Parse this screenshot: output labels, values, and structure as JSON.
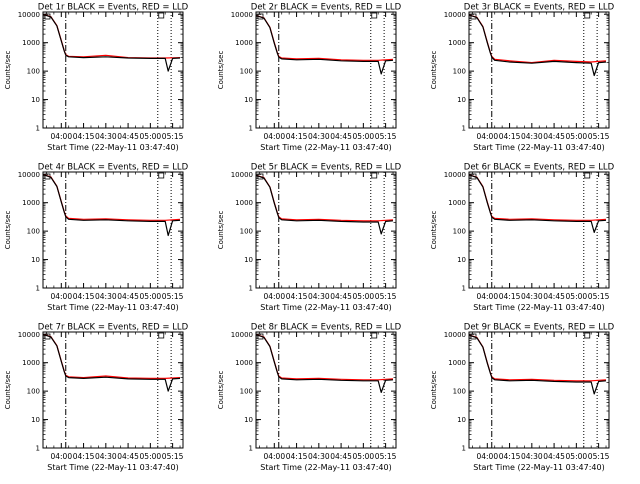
{
  "charts": [
    {
      "title": "Det 1r BLACK = Events, RED = LLD",
      "ylabel": "Counts/sec",
      "xlabel": "Start Time (22-May-11 03:47:40)"
    },
    {
      "title": "Det 2r BLACK = Events, RED = LLD",
      "ylabel": "Counts/sec",
      "xlabel": "Start Time (22-May-11 03:47:40)"
    },
    {
      "title": "Det 3r BLACK = Events, RED = LLD",
      "ylabel": "Counts/sec",
      "xlabel": "Start Time (22-May-11 03:47:40)"
    },
    {
      "title": "Det 4r BLACK = Events, RED = LLD",
      "ylabel": "Counts/sec",
      "xlabel": "Start Time (22-May-11 03:47:40)"
    },
    {
      "title": "Det 5r BLACK = Events, RED = LLD",
      "ylabel": "Counts/sec",
      "xlabel": "Start Time (22-May-11 03:47:40)"
    },
    {
      "title": "Det 6r BLACK = Events, RED = LLD",
      "ylabel": "Counts/sec",
      "xlabel": "Start Time (22-May-11 03:47:40)"
    },
    {
      "title": "Det 7r BLACK = Events, RED = LLD",
      "ylabel": "Counts/sec",
      "xlabel": "Start Time (22-May-11 03:47:40)"
    },
    {
      "title": "Det 8r BLACK = Events, RED = LLD",
      "ylabel": "Counts/sec",
      "xlabel": "Start Time (22-May-11 03:47:40)"
    },
    {
      "title": "Det 9r BLACK = Events, RED = LLD",
      "ylabel": "Counts/sec",
      "xlabel": "Start Time (22-May-11 03:47:40)"
    }
  ],
  "colors": {
    "events": "#000000",
    "lld": "#ff0000"
  },
  "chart_data": [
    {
      "type": "line",
      "title": "Det 1r BLACK = Events, RED = LLD",
      "xlabel": "Start Time (22-May-11 03:47:40)",
      "ylabel": "Counts/sec",
      "xlim": [
        "03:47:40",
        "05:22"
      ],
      "ylim": [
        1,
        12000
      ],
      "yscale": "log",
      "xticks": [
        "04:00",
        "04:15",
        "04:30",
        "04:45",
        "05:00",
        "05:15"
      ],
      "yticks": [
        "1",
        "10",
        "100",
        "1000",
        "10000"
      ],
      "marker_dashdot": "04:03",
      "marker_dotted": [
        "05:05",
        "05:14"
      ],
      "series": [
        {
          "color": "red",
          "x": [
            "03:47:40",
            "03:53",
            "03:57",
            "04:00",
            "04:02",
            "04:03",
            "04:05",
            "04:15",
            "04:30",
            "04:45",
            "05:00",
            "05:10",
            "05:15",
            "05:20"
          ],
          "values": [
            10000,
            8200,
            4000,
            1200,
            520,
            380,
            330,
            320,
            360,
            300,
            290,
            290,
            295,
            300
          ]
        },
        {
          "color": "black",
          "x": [
            "03:47:40",
            "03:53",
            "03:57",
            "04:00",
            "04:02",
            "04:03",
            "04:05",
            "04:15",
            "04:30",
            "04:45",
            "05:00",
            "05:10",
            "05:12",
            "05:15",
            "05:20"
          ],
          "values": [
            10000,
            8000,
            3900,
            1150,
            500,
            360,
            320,
            300,
            320,
            290,
            280,
            280,
            100,
            280,
            290
          ]
        }
      ]
    },
    {
      "type": "line",
      "title": "Det 2r BLACK = Events, RED = LLD",
      "xlabel": "Start Time (22-May-11 03:47:40)",
      "ylabel": "Counts/sec",
      "xlim": [
        "03:47:40",
        "05:22"
      ],
      "ylim": [
        1,
        12000
      ],
      "yscale": "log",
      "xticks": [
        "04:00",
        "04:15",
        "04:30",
        "04:45",
        "05:00",
        "05:15"
      ],
      "yticks": [
        "1",
        "10",
        "100",
        "1000",
        "10000"
      ],
      "marker_dashdot": "04:03",
      "marker_dotted": [
        "05:05",
        "05:14"
      ],
      "series": [
        {
          "color": "red",
          "x": [
            "03:47:40",
            "03:53",
            "03:57",
            "04:00",
            "04:02",
            "04:03",
            "04:05",
            "04:15",
            "04:30",
            "04:45",
            "05:00",
            "05:10",
            "05:15",
            "05:20"
          ],
          "values": [
            9000,
            7500,
            3500,
            1000,
            450,
            330,
            290,
            270,
            280,
            250,
            240,
            240,
            250,
            260
          ]
        },
        {
          "color": "black",
          "x": [
            "03:47:40",
            "03:53",
            "03:57",
            "04:00",
            "04:02",
            "04:03",
            "04:05",
            "04:15",
            "04:30",
            "04:45",
            "05:00",
            "05:10",
            "05:12",
            "05:15",
            "05:20"
          ],
          "values": [
            9000,
            7300,
            3400,
            950,
            430,
            310,
            270,
            250,
            260,
            230,
            220,
            220,
            80,
            230,
            240
          ]
        }
      ]
    },
    {
      "type": "line",
      "title": "Det 3r BLACK = Events, RED = LLD",
      "xlabel": "Start Time (22-May-11 03:47:40)",
      "ylabel": "Counts/sec",
      "xlim": [
        "03:47:40",
        "05:22"
      ],
      "ylim": [
        1,
        12000
      ],
      "yscale": "log",
      "xticks": [
        "04:00",
        "04:15",
        "04:30",
        "04:45",
        "05:00",
        "05:15"
      ],
      "yticks": [
        "1",
        "10",
        "100",
        "1000",
        "10000"
      ],
      "marker_dashdot": "04:03",
      "marker_dotted": [
        "05:05",
        "05:14"
      ],
      "series": [
        {
          "color": "red",
          "x": [
            "03:47:40",
            "03:53",
            "03:57",
            "04:00",
            "04:02",
            "04:03",
            "04:05",
            "04:15",
            "04:30",
            "04:45",
            "05:00",
            "05:10",
            "05:15",
            "05:20"
          ],
          "values": [
            9500,
            7800,
            3700,
            1050,
            460,
            330,
            260,
            230,
            200,
            240,
            220,
            210,
            220,
            230
          ]
        },
        {
          "color": "black",
          "x": [
            "03:47:40",
            "03:53",
            "03:57",
            "04:00",
            "04:02",
            "04:03",
            "04:05",
            "04:15",
            "04:30",
            "04:45",
            "05:00",
            "05:10",
            "05:12",
            "05:15",
            "05:20"
          ],
          "values": [
            9500,
            7600,
            3600,
            1000,
            440,
            310,
            240,
            210,
            190,
            220,
            200,
            190,
            70,
            200,
            210
          ]
        }
      ]
    },
    {
      "type": "line",
      "title": "Det 4r BLACK = Events, RED = LLD",
      "xlabel": "Start Time (22-May-11 03:47:40)",
      "ylabel": "Counts/sec",
      "xlim": [
        "03:47:40",
        "05:22"
      ],
      "ylim": [
        1,
        12000
      ],
      "yscale": "log",
      "xticks": [
        "04:00",
        "04:15",
        "04:30",
        "04:45",
        "05:00",
        "05:15"
      ],
      "yticks": [
        "1",
        "10",
        "100",
        "1000",
        "10000"
      ],
      "marker_dashdot": "04:03",
      "marker_dotted": [
        "05:05",
        "05:14"
      ],
      "series": [
        {
          "color": "red",
          "x": [
            "03:47:40",
            "03:53",
            "03:57",
            "04:00",
            "04:02",
            "04:03",
            "04:05",
            "04:15",
            "04:30",
            "04:45",
            "05:00",
            "05:10",
            "05:15",
            "05:20"
          ],
          "values": [
            9800,
            8000,
            3800,
            1100,
            480,
            340,
            280,
            260,
            270,
            250,
            240,
            240,
            250,
            260
          ]
        },
        {
          "color": "black",
          "x": [
            "03:47:40",
            "03:53",
            "03:57",
            "04:00",
            "04:02",
            "04:03",
            "04:05",
            "04:15",
            "04:30",
            "04:45",
            "05:00",
            "05:10",
            "05:12",
            "05:15",
            "05:20"
          ],
          "values": [
            9800,
            7800,
            3700,
            1050,
            460,
            320,
            260,
            240,
            250,
            230,
            220,
            220,
            70,
            230,
            240
          ]
        }
      ]
    },
    {
      "type": "line",
      "title": "Det 5r BLACK = Events, RED = LLD",
      "xlabel": "Start Time (22-May-11 03:47:40)",
      "ylabel": "Counts/sec",
      "xlim": [
        "03:47:40",
        "05:22"
      ],
      "ylim": [
        1,
        12000
      ],
      "yscale": "log",
      "xticks": [
        "04:00",
        "04:15",
        "04:30",
        "04:45",
        "05:00",
        "05:15"
      ],
      "yticks": [
        "1",
        "10",
        "100",
        "1000",
        "10000"
      ],
      "marker_dashdot": "04:03",
      "marker_dotted": [
        "05:05",
        "05:14"
      ],
      "series": [
        {
          "color": "red",
          "x": [
            "03:47:40",
            "03:53",
            "03:57",
            "04:00",
            "04:02",
            "04:03",
            "04:05",
            "04:15",
            "04:30",
            "04:45",
            "05:00",
            "05:10",
            "05:15",
            "05:20"
          ],
          "values": [
            9200,
            7600,
            3600,
            1000,
            450,
            320,
            270,
            250,
            260,
            240,
            230,
            230,
            240,
            250
          ]
        },
        {
          "color": "black",
          "x": [
            "03:47:40",
            "03:53",
            "03:57",
            "04:00",
            "04:02",
            "04:03",
            "04:05",
            "04:15",
            "04:30",
            "04:45",
            "05:00",
            "05:10",
            "05:12",
            "05:15",
            "05:20"
          ],
          "values": [
            9200,
            7400,
            3500,
            960,
            430,
            300,
            250,
            230,
            240,
            220,
            210,
            210,
            80,
            220,
            230
          ]
        }
      ]
    },
    {
      "type": "line",
      "title": "Det 6r BLACK = Events, RED = LLD",
      "xlabel": "Start Time (22-May-11 03:47:40)",
      "ylabel": "Counts/sec",
      "xlim": [
        "03:47:40",
        "05:22"
      ],
      "ylim": [
        1,
        12000
      ],
      "yscale": "log",
      "xticks": [
        "04:00",
        "04:15",
        "04:30",
        "04:45",
        "05:00",
        "05:15"
      ],
      "yticks": [
        "1",
        "10",
        "100",
        "1000",
        "10000"
      ],
      "marker_dashdot": "04:03",
      "marker_dotted": [
        "05:05",
        "05:14"
      ],
      "series": [
        {
          "color": "red",
          "x": [
            "03:47:40",
            "03:53",
            "03:57",
            "04:00",
            "04:02",
            "04:03",
            "04:05",
            "04:15",
            "04:30",
            "04:45",
            "05:00",
            "05:10",
            "05:15",
            "05:20"
          ],
          "values": [
            9600,
            7900,
            3700,
            1050,
            470,
            330,
            280,
            260,
            270,
            250,
            240,
            240,
            250,
            260
          ]
        },
        {
          "color": "black",
          "x": [
            "03:47:40",
            "03:53",
            "03:57",
            "04:00",
            "04:02",
            "04:03",
            "04:05",
            "04:15",
            "04:30",
            "04:45",
            "05:00",
            "05:10",
            "05:12",
            "05:15",
            "05:20"
          ],
          "values": [
            9600,
            7700,
            3600,
            1000,
            450,
            310,
            260,
            240,
            250,
            230,
            220,
            220,
            90,
            230,
            240
          ]
        }
      ]
    },
    {
      "type": "line",
      "title": "Det 7r BLACK = Events, RED = LLD",
      "xlabel": "Start Time (22-May-11 03:47:40)",
      "ylabel": "Counts/sec",
      "xlim": [
        "03:47:40",
        "05:22"
      ],
      "ylim": [
        1,
        12000
      ],
      "yscale": "log",
      "xticks": [
        "04:00",
        "04:15",
        "04:30",
        "04:45",
        "05:00",
        "05:15"
      ],
      "yticks": [
        "1",
        "10",
        "100",
        "1000",
        "10000"
      ],
      "marker_dashdot": "04:03",
      "marker_dotted": [
        "05:05",
        "05:14"
      ],
      "series": [
        {
          "color": "red",
          "x": [
            "03:47:40",
            "03:53",
            "03:57",
            "04:00",
            "04:02",
            "04:03",
            "04:05",
            "04:15",
            "04:30",
            "04:45",
            "05:00",
            "05:10",
            "05:15",
            "05:20"
          ],
          "values": [
            10000,
            8200,
            4000,
            1150,
            500,
            360,
            320,
            300,
            340,
            290,
            280,
            280,
            290,
            300
          ]
        },
        {
          "color": "black",
          "x": [
            "03:47:40",
            "03:53",
            "03:57",
            "04:00",
            "04:02",
            "04:03",
            "04:05",
            "04:15",
            "04:30",
            "04:45",
            "05:00",
            "05:10",
            "05:12",
            "05:15",
            "05:20"
          ],
          "values": [
            10000,
            8000,
            3900,
            1100,
            480,
            340,
            300,
            280,
            310,
            270,
            260,
            260,
            100,
            270,
            280
          ]
        }
      ]
    },
    {
      "type": "line",
      "title": "Det 8r BLACK = Events, RED = LLD",
      "xlabel": "Start Time (22-May-11 03:47:40)",
      "ylabel": "Counts/sec",
      "xlim": [
        "03:47:40",
        "05:22"
      ],
      "ylim": [
        1,
        12000
      ],
      "yscale": "log",
      "xticks": [
        "04:00",
        "04:15",
        "04:30",
        "04:45",
        "05:00",
        "05:15"
      ],
      "yticks": [
        "1",
        "10",
        "100",
        "1000",
        "10000"
      ],
      "marker_dashdot": "04:03",
      "marker_dotted": [
        "05:05",
        "05:14"
      ],
      "series": [
        {
          "color": "red",
          "x": [
            "03:47:40",
            "03:53",
            "03:57",
            "04:00",
            "04:02",
            "04:03",
            "04:05",
            "04:15",
            "04:30",
            "04:45",
            "05:00",
            "05:10",
            "05:15",
            "05:20"
          ],
          "values": [
            9700,
            8000,
            3800,
            1100,
            480,
            340,
            290,
            270,
            280,
            260,
            250,
            250,
            260,
            270
          ]
        },
        {
          "color": "black",
          "x": [
            "03:47:40",
            "03:53",
            "03:57",
            "04:00",
            "04:02",
            "04:03",
            "04:05",
            "04:15",
            "04:30",
            "04:45",
            "05:00",
            "05:10",
            "05:12",
            "05:15",
            "05:20"
          ],
          "values": [
            9700,
            7800,
            3700,
            1050,
            460,
            320,
            270,
            250,
            260,
            240,
            230,
            230,
            90,
            240,
            250
          ]
        }
      ]
    },
    {
      "type": "line",
      "title": "Det 9r BLACK = Events, RED = LLD",
      "xlabel": "Start Time (22-May-11 03:47:40)",
      "ylabel": "Counts/sec",
      "xlim": [
        "03:47:40",
        "05:22"
      ],
      "ylim": [
        1,
        12000
      ],
      "yscale": "log",
      "xticks": [
        "04:00",
        "04:15",
        "04:30",
        "04:45",
        "05:00",
        "05:15"
      ],
      "yticks": [
        "1",
        "10",
        "100",
        "1000",
        "10000"
      ],
      "marker_dashdot": "04:03",
      "marker_dotted": [
        "05:05",
        "05:14"
      ],
      "series": [
        {
          "color": "red",
          "x": [
            "03:47:40",
            "03:53",
            "03:57",
            "04:00",
            "04:02",
            "04:03",
            "04:05",
            "04:15",
            "04:30",
            "04:45",
            "05:00",
            "05:10",
            "05:15",
            "05:20"
          ],
          "values": [
            9400,
            7700,
            3600,
            1000,
            450,
            320,
            270,
            250,
            260,
            240,
            230,
            230,
            240,
            250
          ]
        },
        {
          "color": "black",
          "x": [
            "03:47:40",
            "03:53",
            "03:57",
            "04:00",
            "04:02",
            "04:03",
            "04:05",
            "04:15",
            "04:30",
            "04:45",
            "05:00",
            "05:10",
            "05:12",
            "05:15",
            "05:20"
          ],
          "values": [
            9400,
            7500,
            3500,
            960,
            430,
            300,
            250,
            230,
            240,
            220,
            210,
            210,
            80,
            220,
            230
          ]
        }
      ]
    }
  ]
}
